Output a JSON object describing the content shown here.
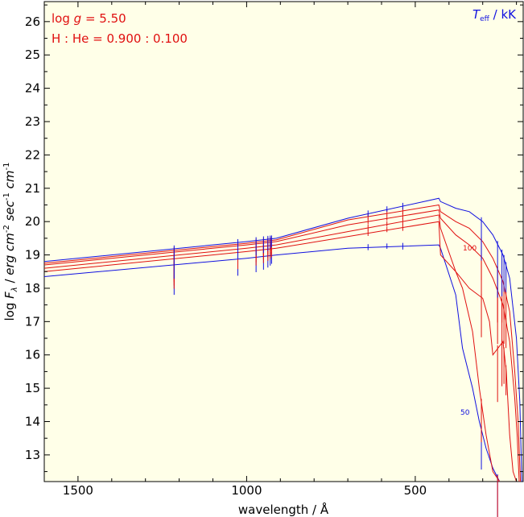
{
  "chart_data": {
    "type": "line",
    "title": "",
    "xlabel": "wavelength / Å",
    "ylabel": "log F_λ / erg cm^-2 sec^-1 cm^-1",
    "xlim": [
      1600,
      180
    ],
    "ylim": [
      12.2,
      26.6
    ],
    "x_ticks": [
      1500,
      1000,
      500
    ],
    "y_ticks": [
      13,
      14,
      15,
      16,
      17,
      18,
      19,
      20,
      21,
      22,
      23,
      24,
      25,
      26
    ],
    "background_color": "#ffffe8",
    "grid": false,
    "annotations": {
      "logg_prefix": "log ",
      "logg_symbol": "g",
      "logg_suffix": " = 5.50",
      "composition": "H : He = 0.900 : 0.100",
      "teff_symbol": "T",
      "teff_sub": "eff",
      "teff_unit": " / kK",
      "label_low": "50",
      "label_high": "100"
    },
    "colors": {
      "hot_cold": "#1010e0",
      "middle": "#e01010",
      "axis": "#000000"
    },
    "series": [
      {
        "color": "#1010e0",
        "x": [
          1600,
          1000,
          912,
          700,
          430,
          425,
          380,
          360,
          330,
          310,
          290,
          270,
          250
        ],
        "y": [
          18.35,
          18.9,
          19.0,
          19.2,
          19.3,
          19.2,
          17.8,
          16.2,
          15.0,
          14.0,
          13.2,
          12.6,
          12.2
        ]
      },
      {
        "color": "#e01010",
        "x": [
          1600,
          1000,
          912,
          700,
          430,
          425,
          380,
          360,
          330,
          310,
          290,
          270,
          250
        ],
        "y": [
          18.5,
          19.1,
          19.2,
          19.55,
          20.0,
          19.0,
          18.5,
          18.0,
          16.7,
          15.0,
          13.6,
          12.5,
          12.2
        ]
      },
      {
        "color": "#e01010",
        "x": [
          1600,
          1000,
          912,
          700,
          430,
          425,
          380,
          340,
          300,
          280,
          270,
          240,
          230,
          220,
          210,
          200
        ],
        "y": [
          18.6,
          19.2,
          19.3,
          19.7,
          20.2,
          19.8,
          18.5,
          18.0,
          17.7,
          17.0,
          16.0,
          16.4,
          15.5,
          13.6,
          12.5,
          12.2
        ]
      },
      {
        "color": "#e01010",
        "x": [
          1600,
          1000,
          912,
          700,
          430,
          425,
          380,
          340,
          300,
          270,
          240,
          220,
          205,
          198,
          192
        ],
        "y": [
          18.7,
          19.3,
          19.4,
          19.9,
          20.35,
          20.1,
          19.6,
          19.3,
          18.9,
          18.3,
          17.5,
          16.4,
          14.7,
          13.6,
          12.2
        ]
      },
      {
        "color": "#e01010",
        "x": [
          1600,
          1000,
          912,
          700,
          430,
          425,
          380,
          340,
          300,
          270,
          240,
          220,
          205,
          195,
          188
        ],
        "y": [
          18.75,
          19.35,
          19.45,
          20.05,
          20.5,
          20.3,
          20.0,
          19.8,
          19.4,
          18.9,
          18.2,
          17.3,
          15.5,
          14.0,
          12.2
        ]
      },
      {
        "color": "#1010e0",
        "x": [
          1600,
          1000,
          912,
          700,
          430,
          425,
          380,
          340,
          300,
          270,
          240,
          220,
          200,
          190,
          184
        ],
        "y": [
          18.8,
          19.4,
          19.5,
          20.1,
          20.7,
          20.6,
          20.4,
          20.3,
          20.0,
          19.6,
          19.0,
          18.3,
          16.5,
          14.6,
          12.2
        ]
      }
    ],
    "absorption_lines": [
      {
        "x": 1215,
        "depth": 0.9
      },
      {
        "x": 1026,
        "depth": 0.5
      },
      {
        "x": 972,
        "depth": 0.45
      },
      {
        "x": 950,
        "depth": 0.4
      },
      {
        "x": 937,
        "depth": 0.35
      },
      {
        "x": 930,
        "depth": 0.3
      },
      {
        "x": 926,
        "depth": 0.25
      },
      {
        "x": 640,
        "depth": 0.08
      },
      {
        "x": 584,
        "depth": 0.06
      },
      {
        "x": 537,
        "depth": 0.1
      },
      {
        "x": 304,
        "depth": 1.2
      },
      {
        "x": 256,
        "depth": 1.6
      },
      {
        "x": 243,
        "depth": 1.3
      },
      {
        "x": 237,
        "depth": 1.0
      },
      {
        "x": 231,
        "depth": 0.8
      }
    ]
  }
}
